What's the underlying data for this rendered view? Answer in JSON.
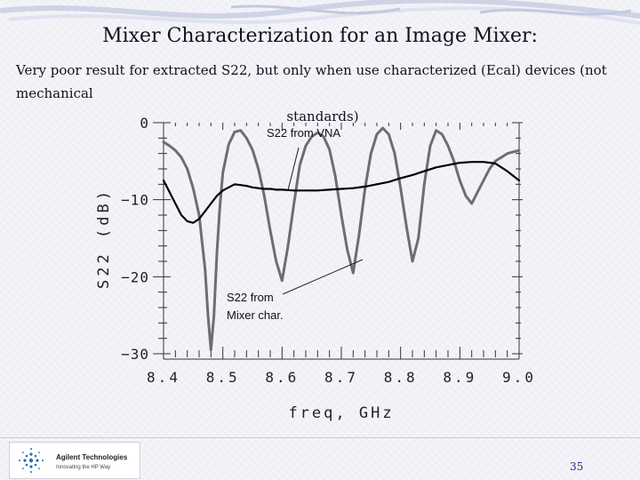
{
  "slide": {
    "title": "Mixer Characterization for an Image Mixer:",
    "subtitle_line1": "Very poor result for extracted S22, but only when use characterized (Ecal) devices (not mechanical",
    "subtitle_line2": "standards)",
    "page_number": "35",
    "logo_name": "Agilent Technologies",
    "logo_tagline": "Innovating the HP Way"
  },
  "colors": {
    "mixer_curve": "#6e6e6e",
    "vna_curve": "#000000",
    "axis": "#333333",
    "title_text": "#101020"
  },
  "chart_data": {
    "type": "line",
    "xlabel": "freq, GHz",
    "ylabel": "S22 (dB)",
    "xlim": [
      8.4,
      9.0
    ],
    "ylim": [
      -30,
      0
    ],
    "x_ticks": [
      "8.4",
      "8.5",
      "8.6",
      "8.7",
      "8.8",
      "8.9",
      "9.0"
    ],
    "y_ticks": [
      "0",
      "-10",
      "-20",
      "-30"
    ],
    "annotations": [
      {
        "text": "S22 from VNA"
      },
      {
        "text": "S22 from"
      },
      {
        "text": "Mixer char."
      }
    ],
    "series": [
      {
        "name": "",
        "note": "S22 from Mixer char.",
        "x": [
          8.4,
          8.41,
          8.42,
          8.43,
          8.44,
          8.45,
          8.46,
          8.47,
          8.475,
          8.48,
          8.485,
          8.49,
          8.495,
          8.5,
          8.51,
          8.52,
          8.53,
          8.54,
          8.55,
          8.56,
          8.57,
          8.58,
          8.59,
          8.6,
          8.61,
          8.62,
          8.63,
          8.64,
          8.65,
          8.66,
          8.67,
          8.68,
          8.69,
          8.7,
          8.71,
          8.72,
          8.73,
          8.74,
          8.75,
          8.76,
          8.77,
          8.78,
          8.79,
          8.8,
          8.81,
          8.82,
          8.83,
          8.84,
          8.85,
          8.86,
          8.87,
          8.88,
          8.89,
          8.9,
          8.91,
          8.92,
          8.93,
          8.94,
          8.95,
          8.96,
          8.97,
          8.98,
          8.99,
          9.0
        ],
        "y": [
          -2.5,
          -3.0,
          -3.6,
          -4.5,
          -6.0,
          -8.5,
          -12.0,
          -19.0,
          -25.0,
          -29.5,
          -25.0,
          -17.0,
          -11.0,
          -6.5,
          -2.8,
          -1.2,
          -1.0,
          -2.0,
          -3.5,
          -6.0,
          -9.5,
          -14.0,
          -18.0,
          -20.5,
          -16.0,
          -10.5,
          -5.5,
          -3.0,
          -1.8,
          -1.3,
          -1.8,
          -3.5,
          -7.0,
          -12.0,
          -16.5,
          -19.5,
          -14.5,
          -8.5,
          -4.0,
          -1.5,
          -0.7,
          -1.5,
          -4.0,
          -8.5,
          -13.5,
          -18.0,
          -15.0,
          -8.0,
          -3.0,
          -1.0,
          -1.5,
          -3.0,
          -5.0,
          -7.5,
          -9.5,
          -10.5,
          -9.0,
          -7.5,
          -6.0,
          -5.0,
          -4.5,
          -4.0,
          -3.8,
          -3.6
        ]
      },
      {
        "name": "",
        "note": "S22 from VNA",
        "x": [
          8.4,
          8.41,
          8.42,
          8.43,
          8.44,
          8.45,
          8.46,
          8.47,
          8.48,
          8.49,
          8.5,
          8.51,
          8.52,
          8.53,
          8.54,
          8.55,
          8.56,
          8.57,
          8.58,
          8.59,
          8.6,
          8.62,
          8.64,
          8.66,
          8.68,
          8.7,
          8.72,
          8.74,
          8.76,
          8.78,
          8.8,
          8.82,
          8.84,
          8.86,
          8.88,
          8.9,
          8.92,
          8.94,
          8.96,
          8.98,
          9.0
        ],
        "y": [
          -7.5,
          -9.0,
          -10.5,
          -12.0,
          -12.8,
          -13.0,
          -12.5,
          -11.5,
          -10.5,
          -9.5,
          -8.8,
          -8.4,
          -8.0,
          -8.1,
          -8.2,
          -8.4,
          -8.5,
          -8.6,
          -8.6,
          -8.7,
          -8.7,
          -8.8,
          -8.8,
          -8.8,
          -8.7,
          -8.6,
          -8.5,
          -8.3,
          -8.0,
          -7.7,
          -7.2,
          -6.8,
          -6.3,
          -5.8,
          -5.5,
          -5.2,
          -5.1,
          -5.1,
          -5.3,
          -6.3,
          -7.5
        ]
      }
    ]
  }
}
